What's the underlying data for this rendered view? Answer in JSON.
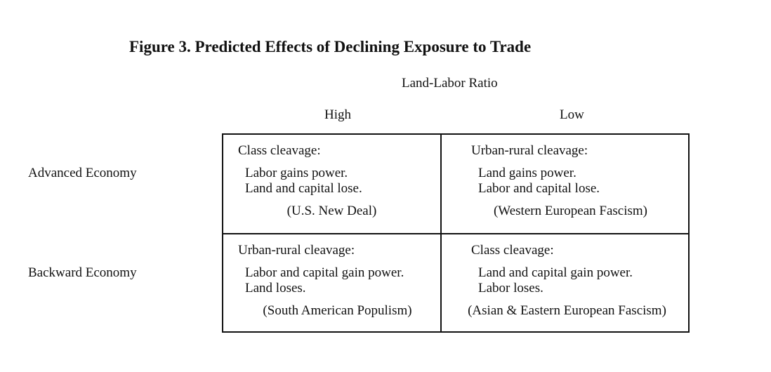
{
  "figure": {
    "title": "Figure 3. Predicted Effects of Declining Exposure to Trade",
    "column_group_label": "Land-Labor Ratio",
    "columns": [
      "High",
      "Low"
    ],
    "rows": [
      "Advanced Economy",
      "Backward Economy"
    ],
    "cells": [
      {
        "heading": "Class cleavage:",
        "line1": "Labor gains power.",
        "line2": "Land and capital lose.",
        "example": "(U.S. New Deal)"
      },
      {
        "heading": "Urban-rural cleavage:",
        "line1": "Land gains power.",
        "line2": "Labor and capital lose.",
        "example": "(Western European Fascism)"
      },
      {
        "heading": "Urban-rural cleavage:",
        "line1": "Labor and capital gain power.",
        "line2": "Land loses.",
        "example": "(South American Populism)"
      },
      {
        "heading": "Class cleavage:",
        "line1": "Land and capital gain power.",
        "line2": "Labor loses.",
        "example": "(Asian & Eastern European Fascism)"
      }
    ]
  }
}
